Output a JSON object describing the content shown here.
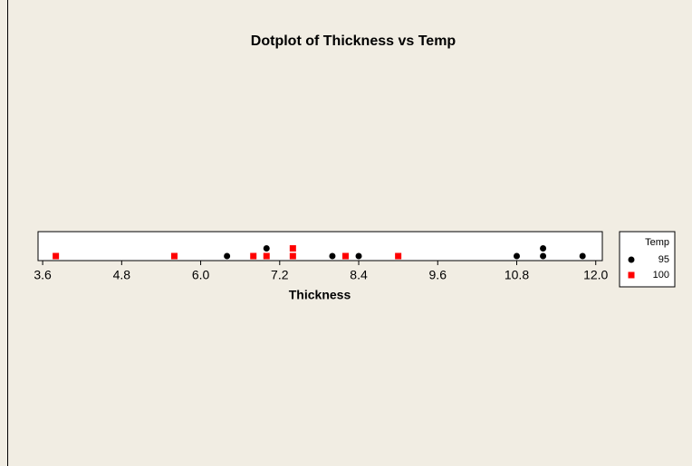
{
  "chart_data": {
    "type": "dotplot",
    "title": "Dotplot of Thickness vs Temp",
    "xlabel": "Thickness",
    "legend_title": "Temp",
    "legend": "right",
    "series": [
      {
        "name": "95",
        "color": "#000000",
        "marker": "circle",
        "values": [
          6.4,
          7.0,
          8.0,
          8.4,
          10.8,
          11.2,
          11.2,
          11.8
        ]
      },
      {
        "name": "100",
        "color": "#ff0000",
        "marker": "square",
        "values": [
          3.8,
          5.6,
          6.8,
          7.0,
          7.4,
          7.4,
          8.2,
          9.0
        ]
      }
    ],
    "xlim": [
      3.53,
      12.1
    ],
    "xticks": [
      3.6,
      4.8,
      {
        "value": 6.0,
        "label": "6.0"
      },
      7.2,
      8.4,
      9.6,
      10.8,
      {
        "value": 12.0,
        "label": "12.0"
      }
    ]
  }
}
